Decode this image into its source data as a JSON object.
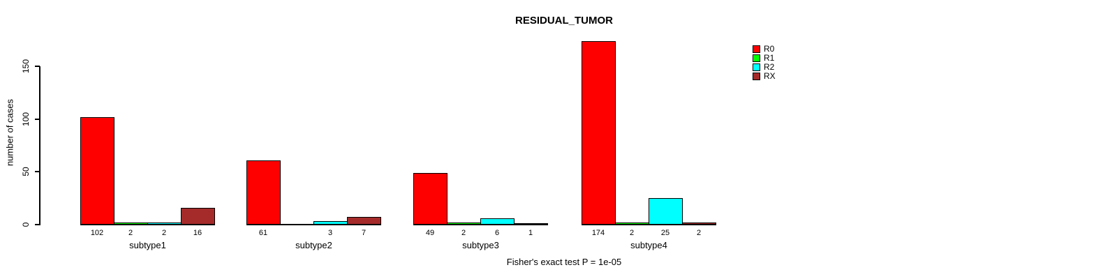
{
  "chart_data": {
    "type": "bar",
    "title": "RESIDUAL_TUMOR",
    "ylabel": "number of cases",
    "xlabel": "",
    "categories": [
      "subtype1",
      "subtype2",
      "subtype3",
      "subtype4"
    ],
    "series": [
      {
        "name": "R0",
        "color": "#FF0000",
        "values": [
          102,
          61,
          49,
          174
        ]
      },
      {
        "name": "R1",
        "color": "#00FF00",
        "values": [
          2,
          0,
          2,
          2
        ]
      },
      {
        "name": "R2",
        "color": "#00FFFF",
        "values": [
          2,
          3,
          6,
          25
        ]
      },
      {
        "name": "RX",
        "color": "#A52A2A",
        "values": [
          16,
          7,
          1,
          2
        ]
      }
    ],
    "bar_labels": [
      [
        "102",
        "2",
        "2",
        "16"
      ],
      [
        "61",
        "",
        "3",
        "7"
      ],
      [
        "49",
        "2",
        "6",
        "1"
      ],
      [
        "174",
        "2",
        "25",
        "2"
      ]
    ],
    "y_ticks": [
      0,
      50,
      100,
      150
    ],
    "ylim": [
      0,
      180
    ],
    "grid": false,
    "legend_position": "topright",
    "annotation": "Fisher's exact test P = 1e-05"
  }
}
